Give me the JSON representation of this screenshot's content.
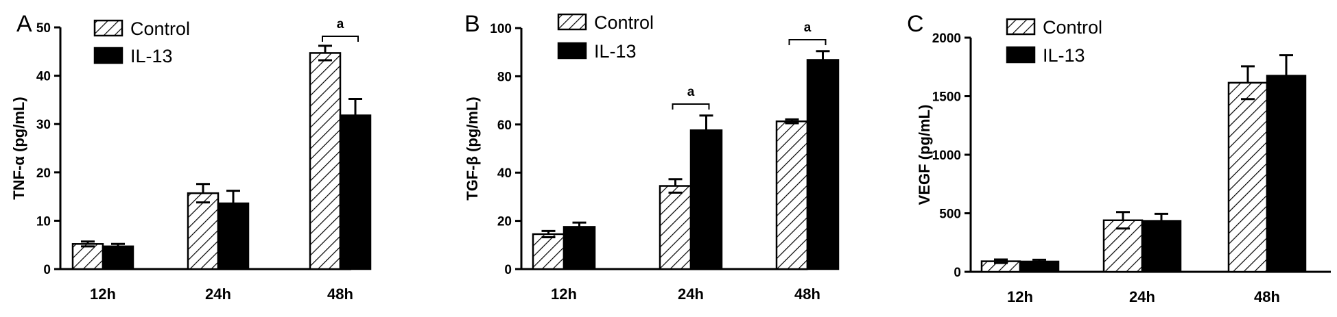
{
  "colors": {
    "control_fill": "hatched",
    "il13_fill": "#000000",
    "axis": "#000000"
  },
  "chart_data": [
    {
      "type": "bar",
      "panel": "A",
      "ylabel": "TNF-α (pg/mL)",
      "categories": [
        "12h",
        "24h",
        "48h"
      ],
      "ylim": [
        0,
        50
      ],
      "yticks": [
        0,
        10,
        20,
        30,
        40,
        50
      ],
      "series": [
        {
          "name": "Control",
          "values": [
            5.2,
            15.7,
            44.7
          ],
          "errors": [
            0.5,
            1.9,
            1.5
          ]
        },
        {
          "name": "IL-13",
          "values": [
            4.7,
            13.6,
            31.8
          ],
          "errors": [
            0.5,
            2.6,
            3.4
          ]
        }
      ],
      "significance": [
        {
          "category": "48h",
          "label": "a"
        }
      ],
      "legend": "top-left"
    },
    {
      "type": "bar",
      "panel": "B",
      "ylabel": "TGF-β (pg/mL)",
      "categories": [
        "12h",
        "24h",
        "48h"
      ],
      "ylim": [
        0,
        100
      ],
      "yticks": [
        0,
        20,
        40,
        60,
        80,
        100
      ],
      "series": [
        {
          "name": "Control",
          "values": [
            14.5,
            34.5,
            61.3
          ],
          "errors": [
            1.3,
            2.8,
            0.8
          ]
        },
        {
          "name": "IL-13",
          "values": [
            17.5,
            57.6,
            86.8
          ],
          "errors": [
            1.8,
            6.1,
            3.6
          ]
        }
      ],
      "significance": [
        {
          "category": "24h",
          "label": "a"
        },
        {
          "category": "48h",
          "label": "a"
        }
      ],
      "legend": "top-left"
    },
    {
      "type": "bar",
      "panel": "C",
      "ylabel": "VEGF (pg/mL)",
      "categories": [
        "12h",
        "24h",
        "48h"
      ],
      "ylim": [
        0,
        2000
      ],
      "yticks": [
        0,
        500,
        1000,
        1500,
        2000
      ],
      "series": [
        {
          "name": "Control",
          "values": [
            90,
            440,
            1615
          ],
          "errors": [
            15,
            70,
            140
          ]
        },
        {
          "name": "IL-13",
          "values": [
            88,
            435,
            1675
          ],
          "errors": [
            15,
            60,
            175
          ]
        }
      ],
      "significance": [],
      "legend": "top-left"
    }
  ]
}
